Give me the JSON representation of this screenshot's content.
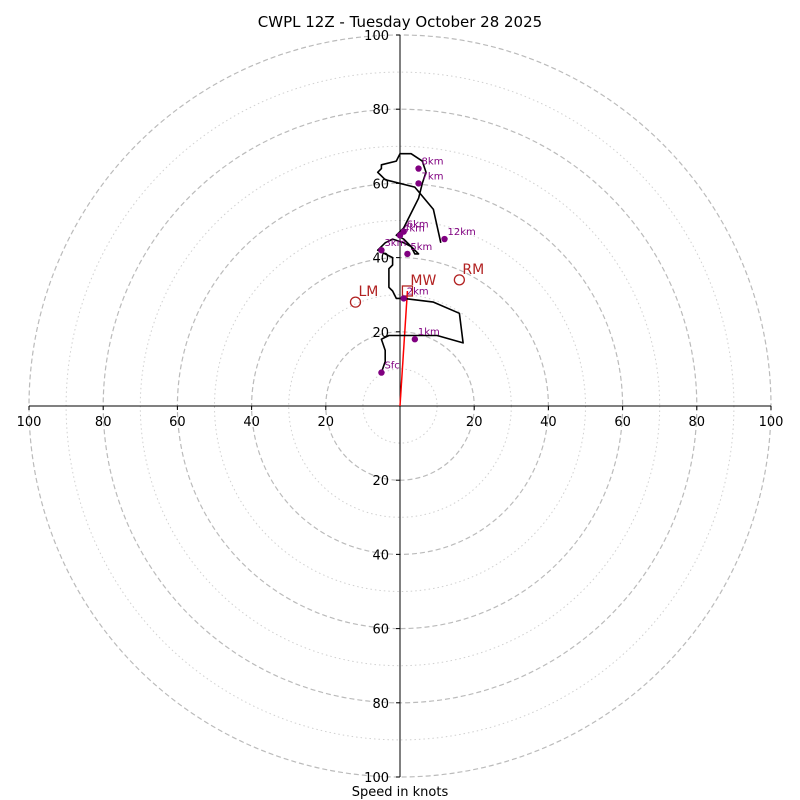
{
  "chart_data": {
    "type": "hodograph",
    "title": "CWPL 12Z - Tuesday October 28 2025",
    "xlabel": "Speed in knots",
    "units": "knots",
    "range": [
      -100,
      100
    ],
    "major_rings": [
      20,
      40,
      60,
      80,
      100
    ],
    "minor_rings": [
      10,
      30,
      50,
      70,
      90
    ],
    "x_tick_labels": [
      "100",
      "80",
      "60",
      "40",
      "20",
      "20",
      "40",
      "60",
      "80",
      "100"
    ],
    "y_tick_labels": [
      "100",
      "80",
      "60",
      "40",
      "20",
      "20",
      "40",
      "60",
      "80",
      "100"
    ],
    "hodograph_line": {
      "color": "#000000",
      "points": [
        [
          -5,
          9
        ],
        [
          -4,
          12
        ],
        [
          -4,
          15
        ],
        [
          -5,
          18
        ],
        [
          -3,
          19
        ],
        [
          -1,
          19
        ],
        [
          4,
          19
        ],
        [
          10,
          19
        ],
        [
          17,
          17
        ],
        [
          16,
          25
        ],
        [
          9,
          28
        ],
        [
          1,
          29
        ],
        [
          -1,
          29
        ],
        [
          -2,
          31
        ],
        [
          -3,
          32
        ],
        [
          -3,
          35
        ],
        [
          -3,
          37
        ],
        [
          -2,
          38
        ],
        [
          -2,
          40
        ],
        [
          -6,
          42
        ],
        [
          -4,
          44
        ],
        [
          -2,
          45
        ],
        [
          1,
          44
        ],
        [
          3,
          43
        ],
        [
          4,
          41
        ],
        [
          5,
          41
        ],
        [
          3,
          43
        ],
        [
          1,
          45
        ],
        [
          -1,
          46
        ],
        [
          1,
          48
        ],
        [
          3,
          52
        ],
        [
          5,
          56
        ],
        [
          6,
          60
        ],
        [
          7,
          63
        ],
        [
          6,
          66
        ],
        [
          3,
          68
        ],
        [
          0,
          68
        ],
        [
          -1,
          66
        ],
        [
          -5,
          65
        ],
        [
          -5,
          64
        ],
        [
          -6,
          63
        ],
        [
          -4,
          61
        ],
        [
          4,
          59
        ],
        [
          9,
          53
        ],
        [
          11,
          44
        ]
      ]
    },
    "height_markers": [
      {
        "label": "Sfc",
        "u": -5,
        "v": 9
      },
      {
        "label": "1km",
        "u": 4,
        "v": 18
      },
      {
        "label": "2km",
        "u": 1,
        "v": 29
      },
      {
        "label": "3km",
        "u": -5,
        "v": 42
      },
      {
        "label": "4km",
        "u": 0,
        "v": 46
      },
      {
        "label": "5km",
        "u": 2,
        "v": 41
      },
      {
        "label": "6km",
        "u": 1,
        "v": 47
      },
      {
        "label": "7km",
        "u": 5,
        "v": 60
      },
      {
        "label": "8km",
        "u": 5,
        "v": 64
      },
      {
        "label": "12km",
        "u": 12,
        "v": 45
      }
    ],
    "motions": [
      {
        "label": "RM",
        "u": 16,
        "v": 34,
        "marker": "circle"
      },
      {
        "label": "LM",
        "u": -12,
        "v": 28,
        "marker": "circle"
      },
      {
        "label": "MW",
        "u": 2,
        "v": 31,
        "marker": "square"
      }
    ],
    "storm_motion_vector": {
      "color": "#ff0000",
      "u": 2,
      "v": 31
    },
    "colors": {
      "height_marker": "#800080",
      "motion_marker": "#b22222",
      "major_ring": "#bbbbbb",
      "minor_ring": "#d0d0d0"
    }
  }
}
